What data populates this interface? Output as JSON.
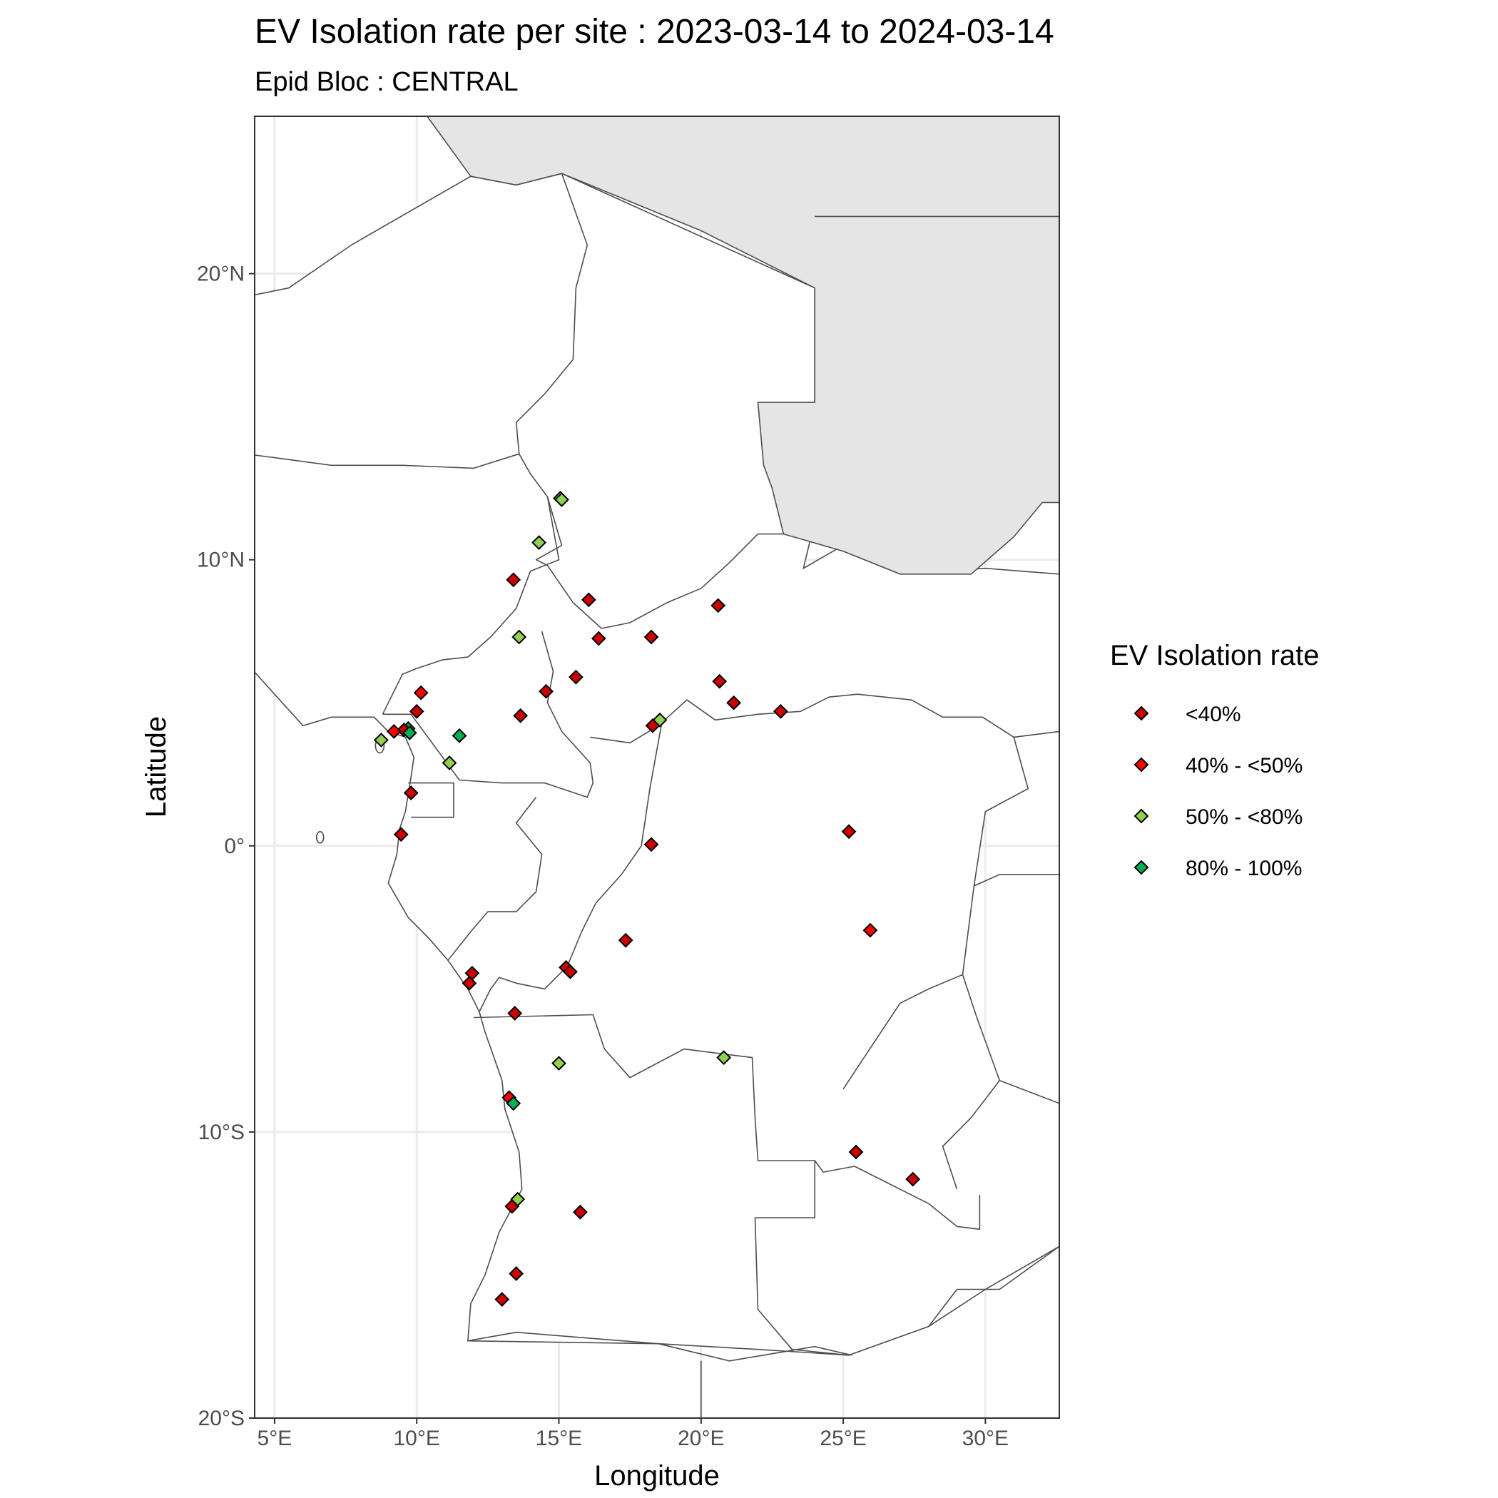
{
  "title": "EV Isolation rate per site : 2023-03-14  to  2024-03-14",
  "subtitle": "Epid Bloc : CENTRAL",
  "chart_data": {
    "type": "scatter",
    "map_region": "Central Africa",
    "xlabel": "Longitude",
    "ylabel": "Latitude",
    "xlim": [
      4.3,
      32.6
    ],
    "ylim": [
      -20.0,
      25.5
    ],
    "x_ticks": [
      {
        "value": 5,
        "label": "5°E"
      },
      {
        "value": 10,
        "label": "10°E"
      },
      {
        "value": 15,
        "label": "15°E"
      },
      {
        "value": 20,
        "label": "20°E"
      },
      {
        "value": 25,
        "label": "25°E"
      },
      {
        "value": 30,
        "label": "30°E"
      }
    ],
    "y_ticks": [
      {
        "value": 20,
        "label": "20°N"
      },
      {
        "value": 10,
        "label": "10°N"
      },
      {
        "value": 0,
        "label": "0°"
      },
      {
        "value": -10,
        "label": "10°S"
      },
      {
        "value": -20,
        "label": "20°S"
      }
    ],
    "grid": true,
    "legend": {
      "title": "EV Isolation rate",
      "placement": "right",
      "items": [
        {
          "key": "lt40",
          "label": "<40%",
          "color": "#cc0000"
        },
        {
          "key": "40to50",
          "label": "40% - <50%",
          "color": "#ff0000"
        },
        {
          "key": "50to80",
          "label": "50% - <80%",
          "color": "#92d050"
        },
        {
          "key": "80to100",
          "label": "80% - 100%",
          "color": "#00b050"
        }
      ]
    },
    "land_color": "#ffffff",
    "outside_color": "#e5e5e5",
    "border_color": "#4d4d4d",
    "points": [
      {
        "lon": 15.05,
        "lat": 12.15,
        "cat": "50to80"
      },
      {
        "lon": 15.1,
        "lat": 12.1,
        "cat": "50to80"
      },
      {
        "lon": 14.3,
        "lat": 10.6,
        "cat": "50to80"
      },
      {
        "lon": 13.4,
        "lat": 9.3,
        "cat": "lt40"
      },
      {
        "lon": 16.05,
        "lat": 8.6,
        "cat": "lt40"
      },
      {
        "lon": 20.6,
        "lat": 8.4,
        "cat": "lt40"
      },
      {
        "lon": 16.4,
        "lat": 7.25,
        "cat": "lt40"
      },
      {
        "lon": 18.25,
        "lat": 7.3,
        "cat": "lt40"
      },
      {
        "lon": 13.6,
        "lat": 7.3,
        "cat": "50to80"
      },
      {
        "lon": 15.6,
        "lat": 5.9,
        "cat": "lt40"
      },
      {
        "lon": 20.65,
        "lat": 5.75,
        "cat": "lt40"
      },
      {
        "lon": 14.55,
        "lat": 5.4,
        "cat": "lt40"
      },
      {
        "lon": 21.15,
        "lat": 5.0,
        "cat": "lt40"
      },
      {
        "lon": 22.8,
        "lat": 4.7,
        "cat": "lt40"
      },
      {
        "lon": 10.15,
        "lat": 5.35,
        "cat": "40to50"
      },
      {
        "lon": 10.0,
        "lat": 4.7,
        "cat": "lt40"
      },
      {
        "lon": 13.65,
        "lat": 4.55,
        "cat": "lt40"
      },
      {
        "lon": 18.55,
        "lat": 4.4,
        "cat": "50to80"
      },
      {
        "lon": 18.3,
        "lat": 4.2,
        "cat": "lt40"
      },
      {
        "lon": 9.7,
        "lat": 4.1,
        "cat": "80to100"
      },
      {
        "lon": 9.55,
        "lat": 4.05,
        "cat": "lt40"
      },
      {
        "lon": 9.2,
        "lat": 4.0,
        "cat": "40to50"
      },
      {
        "lon": 9.75,
        "lat": 3.95,
        "cat": "80to100"
      },
      {
        "lon": 11.5,
        "lat": 3.85,
        "cat": "80to100"
      },
      {
        "lon": 8.75,
        "lat": 3.7,
        "cat": "50to80"
      },
      {
        "lon": 11.15,
        "lat": 2.9,
        "cat": "50to80"
      },
      {
        "lon": 9.8,
        "lat": 1.85,
        "cat": "lt40"
      },
      {
        "lon": 9.45,
        "lat": 0.4,
        "cat": "lt40"
      },
      {
        "lon": 25.2,
        "lat": 0.5,
        "cat": "lt40"
      },
      {
        "lon": 18.25,
        "lat": 0.05,
        "cat": "lt40"
      },
      {
        "lon": 25.95,
        "lat": -2.95,
        "cat": "40to50"
      },
      {
        "lon": 17.35,
        "lat": -3.3,
        "cat": "lt40"
      },
      {
        "lon": 15.25,
        "lat": -4.25,
        "cat": "lt40"
      },
      {
        "lon": 15.4,
        "lat": -4.4,
        "cat": "lt40"
      },
      {
        "lon": 11.95,
        "lat": -4.45,
        "cat": "lt40"
      },
      {
        "lon": 11.85,
        "lat": -4.8,
        "cat": "lt40"
      },
      {
        "lon": 13.45,
        "lat": -5.85,
        "cat": "lt40"
      },
      {
        "lon": 20.8,
        "lat": -7.4,
        "cat": "50to80"
      },
      {
        "lon": 15.0,
        "lat": -7.6,
        "cat": "50to80"
      },
      {
        "lon": 13.25,
        "lat": -8.8,
        "cat": "40to50"
      },
      {
        "lon": 13.4,
        "lat": -9.0,
        "cat": "80to100"
      },
      {
        "lon": 25.45,
        "lat": -10.7,
        "cat": "lt40"
      },
      {
        "lon": 27.45,
        "lat": -11.65,
        "cat": "lt40"
      },
      {
        "lon": 13.55,
        "lat": -12.35,
        "cat": "50to80"
      },
      {
        "lon": 13.35,
        "lat": -12.6,
        "cat": "lt40"
      },
      {
        "lon": 15.75,
        "lat": -12.8,
        "cat": "lt40"
      },
      {
        "lon": 13.5,
        "lat": -14.95,
        "cat": "lt40"
      },
      {
        "lon": 13.0,
        "lat": -15.85,
        "cat": "lt40"
      }
    ]
  }
}
